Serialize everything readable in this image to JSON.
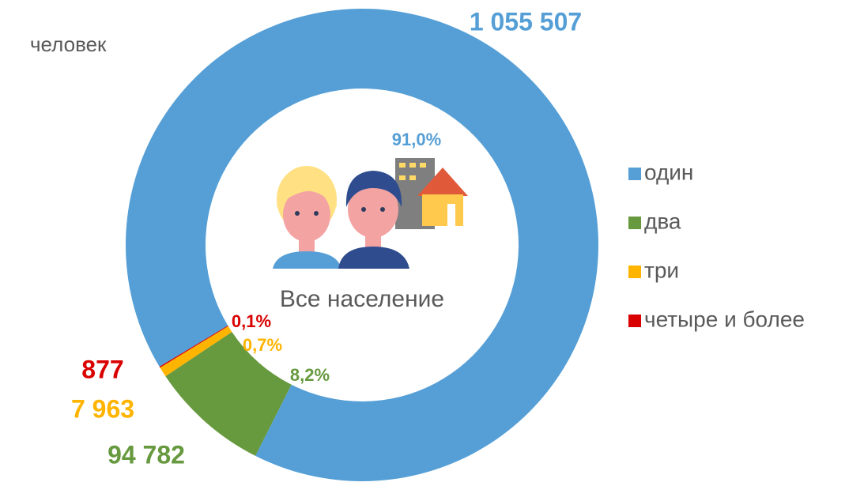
{
  "chart_data": {
    "type": "donut",
    "unit": "человек",
    "center_label": "Все население",
    "categories": [
      "один",
      "два",
      "три",
      "четыре и более"
    ],
    "values": [
      1055507,
      94782,
      7963,
      877
    ],
    "value_labels": [
      "1 055 507",
      "94 782",
      "7 963",
      "877"
    ],
    "percent_labels": [
      "91,0%",
      "8,2%",
      "0,7%",
      "0,1%"
    ],
    "colors": [
      "#559fd6",
      "#67993f",
      "#ffb400",
      "#d90000"
    ],
    "legend": "right"
  }
}
